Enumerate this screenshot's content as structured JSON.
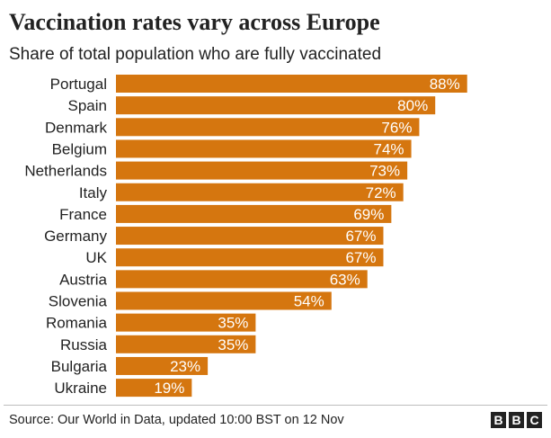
{
  "header": {
    "title": "Vaccination rates vary across Europe",
    "subtitle": "Share of total population who are fully vaccinated"
  },
  "footer": {
    "source": "Source: Our World in Data, updated 10:00 BST on 12 Nov",
    "logo": [
      "B",
      "B",
      "C"
    ]
  },
  "colors": {
    "bar": "#d5760f",
    "text": "#222222",
    "bar_label": "#ffffff"
  },
  "chart_data": {
    "type": "bar",
    "orientation": "horizontal",
    "title": "Vaccination rates vary across Europe",
    "subtitle": "Share of total population who are fully vaccinated",
    "categories": [
      "Portugal",
      "Spain",
      "Denmark",
      "Belgium",
      "Netherlands",
      "Italy",
      "France",
      "Germany",
      "UK",
      "Austria",
      "Slovenia",
      "Romania",
      "Russia",
      "Bulgaria",
      "Ukraine"
    ],
    "values": [
      88,
      80,
      76,
      74,
      73,
      72,
      69,
      67,
      67,
      63,
      54,
      35,
      35,
      23,
      19
    ],
    "value_labels": [
      "88%",
      "80%",
      "76%",
      "74%",
      "73%",
      "72%",
      "69%",
      "67%",
      "67%",
      "63%",
      "54%",
      "35%",
      "35%",
      "23%",
      "19%"
    ],
    "xlim": [
      0,
      100
    ],
    "grid": false,
    "legend": "none"
  }
}
